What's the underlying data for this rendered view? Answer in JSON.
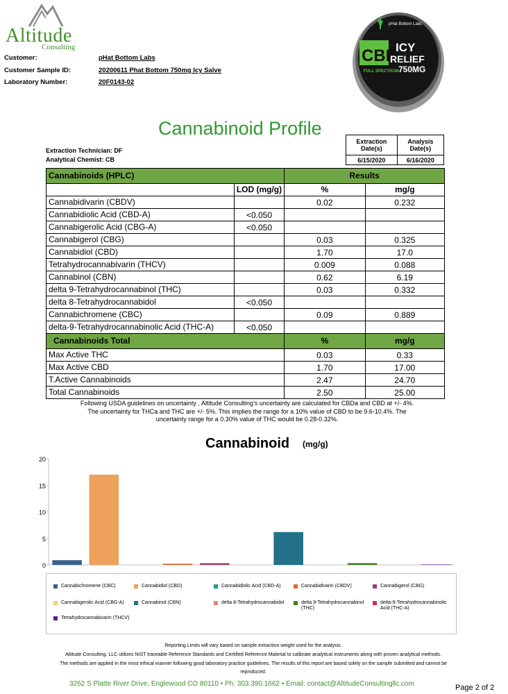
{
  "logo": {
    "name": "Altitude",
    "sub": "Consulting"
  },
  "product": {
    "brand": "pHat Bottom Labs",
    "line1": "CBD",
    "line2": "ICY",
    "line3": "RELIEF",
    "line4": "750MG",
    "line5": "FULL SPECTRUM"
  },
  "customer": {
    "customer_label": "Customer:",
    "customer_value": "pHat Bottom Labs",
    "sample_label": "Customer Sample ID:",
    "sample_value": "20200611 Phat Bottom 750mg Icy Salve",
    "lab_label": "Laboratory Number:",
    "lab_value": "20F0143-02"
  },
  "title": "Cannabinoid Profile",
  "technician": "Extraction Technician: DF",
  "chemist": "Analytical Chemist: CB",
  "dates": {
    "extraction_label_1": "Extraction",
    "extraction_label_2": "Date(s)",
    "analysis_label_1": "Analysis",
    "analysis_label_2": "Date(s)",
    "extraction_date": "6/15/2020",
    "analysis_date": "6/16/2020"
  },
  "table": {
    "header_left": "Cannabinoids (HPLC)",
    "header_right": "Results",
    "col_lod": "LOD (mg/g)",
    "col_pct": "%",
    "col_mgg": "mg/g",
    "rows": [
      {
        "name": "Cannabidivarin (CBDV)",
        "lod": "",
        "pct": "0.02",
        "mgg": "0.232"
      },
      {
        "name": "Cannabidiolic Acid (CBD-A)",
        "lod": "<0.050",
        "pct": "",
        "mgg": ""
      },
      {
        "name": "Cannabigerolic Acid (CBG-A)",
        "lod": "<0.050",
        "pct": "",
        "mgg": ""
      },
      {
        "name": "Cannabigerol (CBG)",
        "lod": "",
        "pct": "0.03",
        "mgg": "0.325"
      },
      {
        "name": "Cannabidiol (CBD)",
        "lod": "",
        "pct": "1.70",
        "mgg": "17.0"
      },
      {
        "name": "Tetrahydrocannabivarin (THCV)",
        "lod": "",
        "pct": "0.009",
        "mgg": "0.088"
      },
      {
        "name": "Cannabinol (CBN)",
        "lod": "",
        "pct": "0.62",
        "mgg": "6.19"
      },
      {
        "name": "delta 9-Tetrahydrocannabinol (THC)",
        "lod": "",
        "pct": "0.03",
        "mgg": "0.332"
      },
      {
        "name": "delta 8-Tetrahydrocannabidol",
        "lod": "<0.050",
        "pct": "",
        "mgg": ""
      },
      {
        "name": "Cannabichromene (CBC)",
        "lod": "",
        "pct": "0.09",
        "mgg": "0.889"
      },
      {
        "name": "delta-9-Tetrahydrocannabinolic Acid (THC-A)",
        "lod": "<0.050",
        "pct": "",
        "mgg": ""
      }
    ],
    "totals_label": "Cannabinoids Total",
    "totals_pct": "%",
    "totals_mgg": "mg/g",
    "totals": [
      {
        "name": "Max Active THC",
        "pct": "0.03",
        "mgg": "0.33"
      },
      {
        "name": "Max Active CBD",
        "pct": "1.70",
        "mgg": "17.00"
      },
      {
        "name": "T.Active Cannabinoids",
        "pct": "2.47",
        "mgg": "24.70"
      },
      {
        "name": "Total Cannabinoids",
        "pct": "2.50",
        "mgg": "25.00"
      }
    ]
  },
  "uncertainty": [
    "Following USDA guidelines on uncertainty , Altitude Consulting’s uncertainty are calculated for CBDa and CBD at +/- 4%.",
    "The uncertainty for THCa and THC are +/- 5%. This implies the range for a 10% value of CBD to be 9.6-10.4%. The",
    "uncertainty range for a 0.30% value of THC would be 0.28-0.32%."
  ],
  "chart_title": "Cannabinoid",
  "chart_unit": "(mg/g)",
  "chart_data": {
    "type": "bar",
    "title": "Cannabinoid",
    "ylabel": "",
    "xlabel": "",
    "ylim": [
      0,
      20
    ],
    "yticks": [
      "0",
      "5",
      "10",
      "15",
      "20"
    ],
    "grid": false,
    "legend": "bottom",
    "series": [
      {
        "name": "Cannabichromene (CBC)",
        "value": 0.889,
        "color": "#3a5f8f"
      },
      {
        "name": "Cannabidiol (CBD)",
        "value": 17.0,
        "color": "#eda15a"
      },
      {
        "name": "Cannabidiolic Acid (CBD-A)",
        "value": 0,
        "color": "#1a9e8c"
      },
      {
        "name": "Cannabidivarin (CBDV)",
        "value": 0.232,
        "color": "#e06a2e"
      },
      {
        "name": "Cannabigerol (CBG)",
        "value": 0.325,
        "color": "#a23a6e"
      },
      {
        "name": "Cannabigerolic Acid (CBG-A)",
        "value": 0,
        "color": "#f6d36b"
      },
      {
        "name": "Cannabinol (CBN)",
        "value": 6.19,
        "color": "#23718a"
      },
      {
        "name": "delta 8-Tetrahydrocannabidol",
        "value": 0,
        "color": "#e8857a"
      },
      {
        "name": "delta 9-Tetrahydrocannabinol (THC)",
        "value": 0.332,
        "color": "#3f7f1e"
      },
      {
        "name": "delta-9-Tetrahydrocannabinolic Acid (THC-A)",
        "value": 0,
        "color": "#cf2c5a"
      },
      {
        "name": "Tetrahydrocannabivarin (THCV)",
        "value": 0.088,
        "color": "#5b1e99"
      }
    ]
  },
  "legend_labels": [
    "Cannabichromene (CBC)",
    "Cannabidiol (CBD)",
    "Cannabidiolic Acid (CBD-A)",
    "Cannabidivarin (CBDV)",
    "Cannabigerol (CBG)",
    "Cannabigerolic Acid (CBG-A)",
    "Cannabinol (CBN)",
    "delta 8-Tetrahydrocannabidol",
    "delta 9-Tetrahydrocannabinol (THC)",
    "delta-9-Tetrahydrocannabinolic Acid (THC-A)",
    "Tetrahydrocannabivarin (THCV)"
  ],
  "footer": {
    "line1": "Reporting Limits will vary based on sample extraction weight used for the analysis.",
    "line2": "Altitude Consulting, LLC utilizes NIST traceable Reference Standards and Certified Reference Material to calibrate analytical instruments along with proven analytical methods.",
    "line3": "The methods are applied in the most ethical manner following good laboratory practice guidelines. The results of this report are based solely on the sample submitted and cannot be",
    "line4": "reproduced.",
    "address": "3262 S Platte River Drive, Englewood CO 80110   •   Ph: 303.390.1662   •   Email: contact@AltitudeConsultingllc.com",
    "page": "Page 2 of 2"
  }
}
